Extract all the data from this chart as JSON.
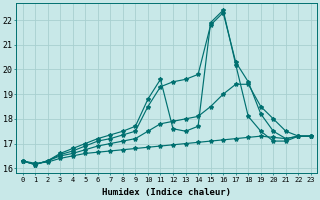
{
  "xlabel": "Humidex (Indice chaleur)",
  "xlim": [
    -0.5,
    23.5
  ],
  "ylim": [
    15.8,
    22.7
  ],
  "yticks": [
    16,
    17,
    18,
    19,
    20,
    21,
    22
  ],
  "xticks": [
    0,
    1,
    2,
    3,
    4,
    5,
    6,
    7,
    8,
    9,
    10,
    11,
    12,
    13,
    14,
    15,
    16,
    17,
    18,
    19,
    20,
    21,
    22,
    23
  ],
  "bg_color": "#c8e8e8",
  "grid_color": "#a8d0d0",
  "line_color": "#007070",
  "lines": [
    [
      16.3,
      16.2,
      16.25,
      16.4,
      16.5,
      16.6,
      16.65,
      16.7,
      16.75,
      16.8,
      16.85,
      16.9,
      16.95,
      17.0,
      17.05,
      17.1,
      17.15,
      17.2,
      17.25,
      17.3,
      17.25,
      17.2,
      17.3,
      17.3
    ],
    [
      16.3,
      16.15,
      16.3,
      16.5,
      16.6,
      16.75,
      16.9,
      17.0,
      17.1,
      17.2,
      17.5,
      17.8,
      17.9,
      18.0,
      18.1,
      18.5,
      19.0,
      19.4,
      19.4,
      18.5,
      18.0,
      17.5,
      17.3,
      17.3
    ],
    [
      16.3,
      16.15,
      16.3,
      16.55,
      16.7,
      16.9,
      17.1,
      17.2,
      17.35,
      17.5,
      18.5,
      19.3,
      19.5,
      19.6,
      19.8,
      21.8,
      22.3,
      20.3,
      19.5,
      18.2,
      17.5,
      17.2,
      17.3,
      17.3
    ],
    [
      16.3,
      16.15,
      16.3,
      16.6,
      16.8,
      17.0,
      17.2,
      17.35,
      17.5,
      17.7,
      18.8,
      19.6,
      17.6,
      17.5,
      17.7,
      21.9,
      22.4,
      20.2,
      18.1,
      17.5,
      17.1,
      17.1,
      17.3,
      17.3
    ]
  ]
}
